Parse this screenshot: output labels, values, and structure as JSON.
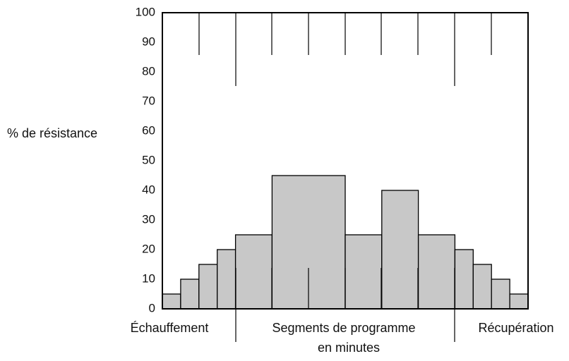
{
  "chart_data": {
    "type": "histogram",
    "y_label": "% de résistance",
    "annotations": [
      "Échauffement",
      "Segments de programme",
      "en minutes",
      "Récupération"
    ],
    "bins": [
      0,
      1,
      2,
      3,
      4,
      6,
      10,
      12,
      14,
      16,
      17,
      18,
      19,
      20
    ],
    "values": [
      5,
      10,
      15,
      20,
      25,
      45,
      25,
      40,
      25,
      20,
      15,
      10,
      5
    ],
    "color": "#c8c8c8",
    "xlim": [
      0,
      20
    ],
    "ylim": [
      0,
      100
    ],
    "yticks": [
      0,
      10,
      20,
      30,
      40,
      50,
      60,
      70,
      80,
      90,
      100
    ]
  }
}
